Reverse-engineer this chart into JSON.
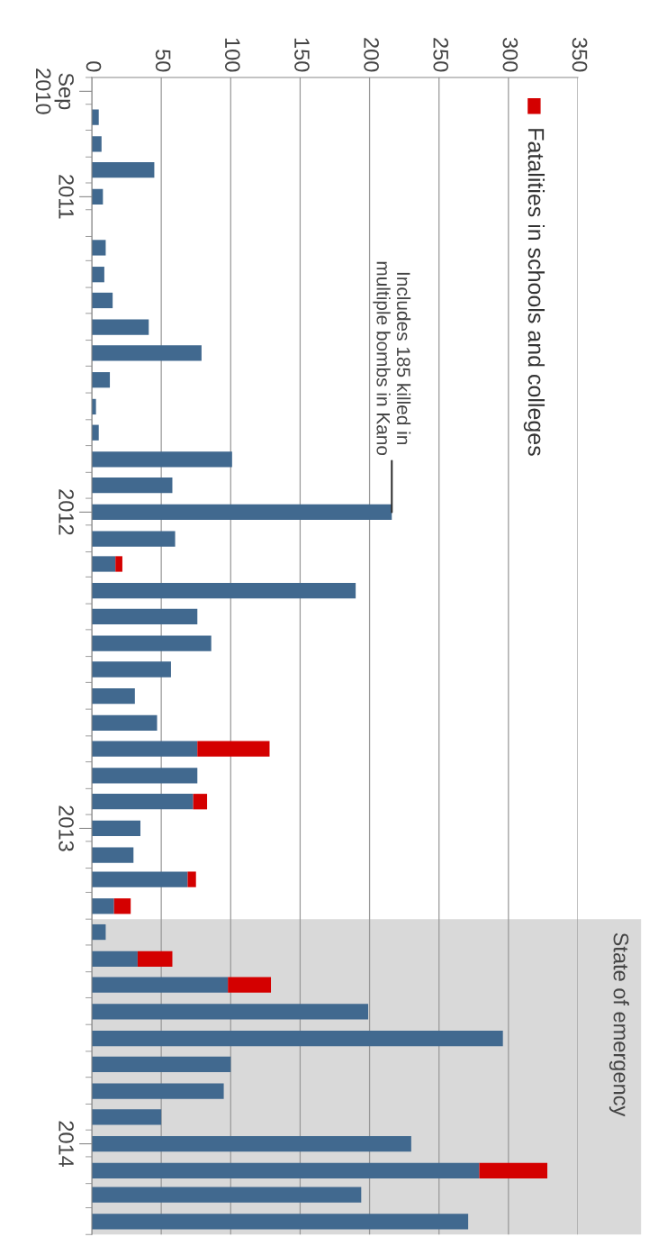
{
  "chart_data": {
    "type": "bar",
    "orientation": "horizontal",
    "stacked": true,
    "x": [
      "2010-09",
      "2010-10",
      "2010-11",
      "2010-12",
      "2011-01",
      "2011-02",
      "2011-03",
      "2011-04",
      "2011-05",
      "2011-06",
      "2011-07",
      "2011-08",
      "2011-09",
      "2011-10",
      "2011-11",
      "2011-12",
      "2012-01",
      "2012-02",
      "2012-03",
      "2012-04",
      "2012-05",
      "2012-06",
      "2012-07",
      "2012-08",
      "2012-09",
      "2012-10",
      "2012-11",
      "2012-12",
      "2013-01",
      "2013-02",
      "2013-03",
      "2013-04",
      "2013-05",
      "2013-06",
      "2013-07",
      "2013-08",
      "2013-09",
      "2013-10",
      "2013-11",
      "2013-12",
      "2014-01",
      "2014-02",
      "2014-03",
      "2014-04"
    ],
    "series": [
      {
        "color": "#41698f",
        "values": [
          0,
          5,
          7,
          45,
          8,
          0,
          10,
          9,
          15,
          41,
          79,
          13,
          3,
          5,
          101,
          58,
          216,
          60,
          17,
          190,
          76,
          86,
          57,
          31,
          47,
          76,
          76,
          73,
          35,
          30,
          69,
          16,
          10,
          33,
          98,
          199,
          296,
          100,
          95,
          50,
          230,
          279,
          194,
          271
        ]
      },
      {
        "name": "Fatalities in schools and colleges",
        "color": "#d40000",
        "values": [
          null,
          null,
          null,
          null,
          null,
          null,
          null,
          null,
          null,
          null,
          null,
          null,
          null,
          null,
          null,
          null,
          null,
          null,
          5,
          null,
          null,
          null,
          null,
          null,
          null,
          52,
          null,
          10,
          null,
          null,
          6,
          12,
          null,
          25,
          31,
          null,
          null,
          null,
          null,
          null,
          null,
          49,
          null,
          null
        ]
      }
    ],
    "xlim": [
      0,
      350
    ],
    "xticks": [
      0,
      50,
      100,
      150,
      200,
      250,
      300,
      350
    ],
    "ylim": [
      "2014-04-16",
      "2010-08-16"
    ],
    "yticks": [
      {
        "value": "2010-09",
        "label": "Sep\n2010"
      },
      {
        "value": "2011-01",
        "label": "2011"
      },
      {
        "value": "2012-01",
        "label": "2012"
      },
      {
        "value": "2013-01",
        "label": "2013"
      },
      {
        "value": "2014-01",
        "label": "2014"
      }
    ],
    "grid": "x",
    "legend": "top right",
    "bands": [
      {
        "axis": "y",
        "from": "2013-04-16",
        "to": "2014-04-16",
        "label": "State of emergency",
        "color": "#d9d9d9"
      }
    ],
    "annotations": [
      {
        "text": "Includes 185 killed in\nmultiple bombs in Kano",
        "x": 216,
        "y": "2012-01"
      }
    ]
  }
}
